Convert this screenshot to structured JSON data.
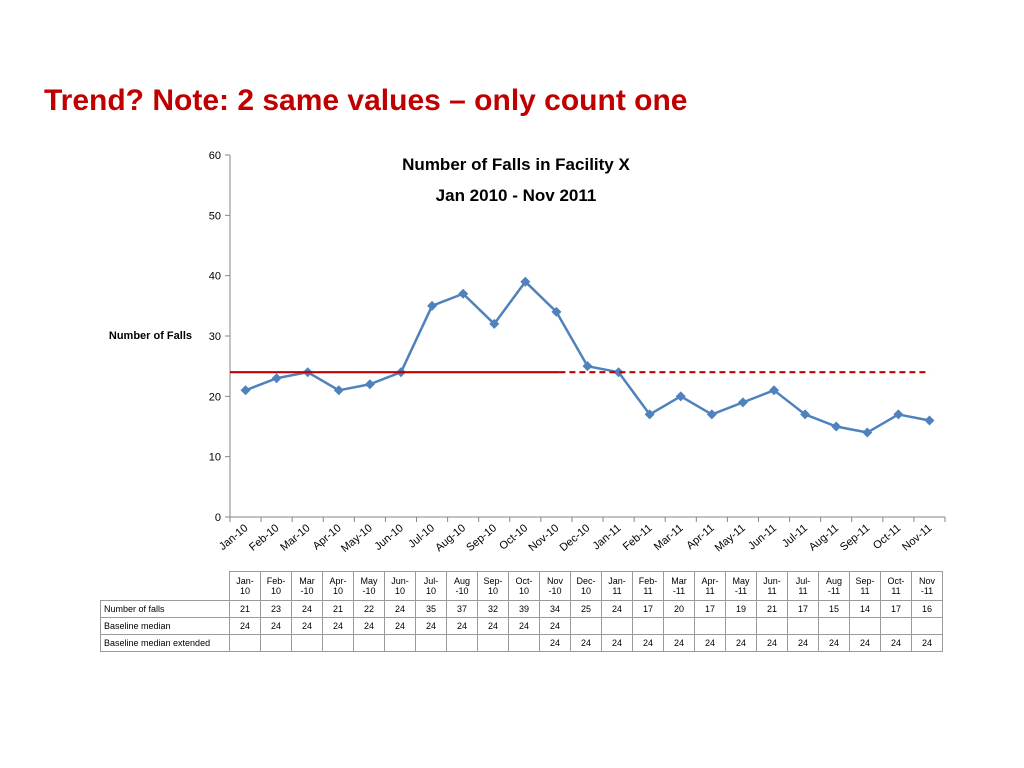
{
  "slide": {
    "title": "Trend?  Note: 2 same values – only count one"
  },
  "chart_data": {
    "type": "line",
    "title": "Number of Falls in Facility X",
    "subtitle": "Jan 2010 - Nov 2011",
    "xlabel": "",
    "ylabel": "Number of Falls",
    "ylim": [
      0,
      60
    ],
    "yticks": [
      0,
      10,
      20,
      30,
      40,
      50,
      60
    ],
    "grid": false,
    "categories": [
      "Jan-10",
      "Feb-10",
      "Mar-10",
      "Apr-10",
      "May-10",
      "Jun-10",
      "Jul-10",
      "Aug-10",
      "Sep-10",
      "Oct-10",
      "Nov-10",
      "Dec-10",
      "Jan-11",
      "Feb-11",
      "Mar-11",
      "Apr-11",
      "May-11",
      "Jun-11",
      "Jul-11",
      "Aug-11",
      "Sep-11",
      "Oct-11",
      "Nov-11"
    ],
    "table_headers": [
      [
        "Jan-",
        "10"
      ],
      [
        "Feb-",
        "10"
      ],
      [
        "Mar",
        "-10"
      ],
      [
        "Apr-",
        "10"
      ],
      [
        "May",
        "-10"
      ],
      [
        "Jun-",
        "10"
      ],
      [
        "Jul-",
        "10"
      ],
      [
        "Aug",
        "-10"
      ],
      [
        "Sep-",
        "10"
      ],
      [
        "Oct-",
        "10"
      ],
      [
        "Nov",
        "-10"
      ],
      [
        "Dec-",
        "10"
      ],
      [
        "Jan-",
        "11"
      ],
      [
        "Feb-",
        "11"
      ],
      [
        "Mar",
        "-11"
      ],
      [
        "Apr-",
        "11"
      ],
      [
        "May",
        "-11"
      ],
      [
        "Jun-",
        "11"
      ],
      [
        "Jul-",
        "11"
      ],
      [
        "Aug",
        "-11"
      ],
      [
        "Sep-",
        "11"
      ],
      [
        "Oct-",
        "11"
      ],
      [
        "Nov",
        "-11"
      ]
    ],
    "series": [
      {
        "name": "Number of falls",
        "color": "#4f81bd",
        "style": "line-diamond",
        "values": [
          21,
          23,
          24,
          21,
          22,
          24,
          35,
          37,
          32,
          39,
          34,
          25,
          24,
          17,
          20,
          17,
          19,
          21,
          17,
          15,
          14,
          17,
          16
        ]
      },
      {
        "name": "Baseline median",
        "color": "#c00000",
        "style": "solid",
        "values": [
          24,
          24,
          24,
          24,
          24,
          24,
          24,
          24,
          24,
          24,
          24,
          null,
          null,
          null,
          null,
          null,
          null,
          null,
          null,
          null,
          null,
          null,
          null
        ]
      },
      {
        "name": "Baseline median extended",
        "color": "#c00000",
        "style": "dashed",
        "values": [
          null,
          null,
          null,
          null,
          null,
          null,
          null,
          null,
          null,
          null,
          24,
          24,
          24,
          24,
          24,
          24,
          24,
          24,
          24,
          24,
          24,
          24,
          24
        ]
      }
    ]
  }
}
